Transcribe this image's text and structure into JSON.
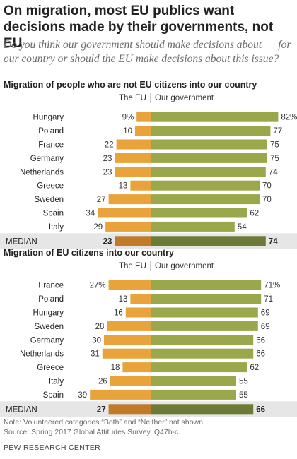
{
  "title": "On migration, most EU publics want decisions made by their governments, not EU",
  "subtitle": "Do you think our government should make decisions about __ for our country or should the EU make decisions about this issue?",
  "colors": {
    "eu": "#e8a33a",
    "gov": "#9aa74a",
    "eu_median": "#c07a2a",
    "gov_median": "#6b7a35",
    "median_band": "#e6e6e6"
  },
  "chart_data": [
    {
      "type": "bar",
      "title": "Migration of people who are not EU citizens into our country",
      "legend": [
        "The EU",
        "Our government"
      ],
      "categories": [
        "Hungary",
        "Poland",
        "France",
        "Germany",
        "Netherlands",
        "Greece",
        "Sweden",
        "Spain",
        "Italy"
      ],
      "series": [
        {
          "name": "The EU",
          "values": [
            9,
            10,
            22,
            23,
            23,
            13,
            27,
            34,
            29
          ],
          "labels": [
            "9%",
            "10",
            "22",
            "23",
            "23",
            "13",
            "27",
            "34",
            "29"
          ]
        },
        {
          "name": "Our government",
          "values": [
            82,
            77,
            75,
            75,
            74,
            70,
            70,
            62,
            54
          ],
          "labels": [
            "82%",
            "77",
            "75",
            "75",
            "74",
            "70",
            "70",
            "62",
            "54"
          ]
        }
      ],
      "median": {
        "label": "MEDIAN",
        "eu": 23,
        "gov": 74,
        "eu_label": "23",
        "gov_label": "74"
      }
    },
    {
      "type": "bar",
      "title": "Migration of EU citizens into our country",
      "legend": [
        "The EU",
        "Our government"
      ],
      "categories": [
        "France",
        "Poland",
        "Hungary",
        "Sweden",
        "Germany",
        "Netherlands",
        "Greece",
        "Italy",
        "Spain"
      ],
      "series": [
        {
          "name": "The EU",
          "values": [
            27,
            13,
            16,
            28,
            30,
            31,
            18,
            26,
            39
          ],
          "labels": [
            "27%",
            "13",
            "16",
            "28",
            "30",
            "31",
            "18",
            "26",
            "39"
          ]
        },
        {
          "name": "Our government",
          "values": [
            71,
            71,
            69,
            69,
            66,
            66,
            62,
            55,
            55
          ],
          "labels": [
            "71%",
            "71",
            "69",
            "69",
            "66",
            "66",
            "62",
            "55",
            "55"
          ]
        }
      ],
      "median": {
        "label": "MEDIAN",
        "eu": 27,
        "gov": 66,
        "eu_label": "27",
        "gov_label": "66"
      }
    }
  ],
  "note": "Note: Volunteered categories “Both” and “Neither” not shown.",
  "source": "Source: Spring 2017 Global Attitudes Survey. Q47b-c.",
  "organization": "PEW RESEARCH CENTER"
}
